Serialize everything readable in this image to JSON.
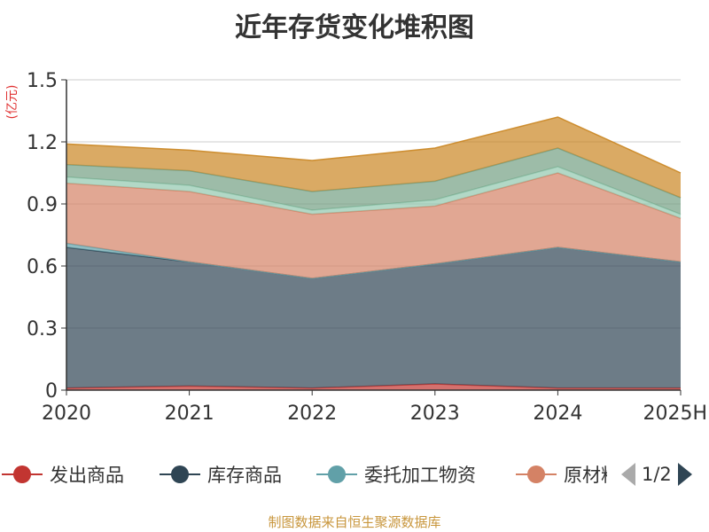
{
  "title": "近年存货变化堆积图",
  "source": "制图数据来自恒生聚源数据库",
  "chart_data": {
    "type": "area",
    "stacked": true,
    "x": [
      "2020",
      "2021",
      "2022",
      "2023",
      "2024",
      "2025H"
    ],
    "ylabel": "(亿元)",
    "ylim": [
      0,
      1.5
    ],
    "yticks": [
      "0",
      "0.3",
      "0.6",
      "0.9",
      "1.2",
      "1.5"
    ],
    "grid": true,
    "series": [
      {
        "name": "发出商品",
        "color": "#c23531",
        "values": [
          0.01,
          0.02,
          0.01,
          0.03,
          0.01,
          0.01
        ]
      },
      {
        "name": "库存商品",
        "color": "#2f4554",
        "values": [
          0.68,
          0.6,
          0.53,
          0.58,
          0.68,
          0.61
        ]
      },
      {
        "name": "委托加工物资",
        "color": "#61a0a8",
        "values": [
          0.02,
          0.0,
          0.0,
          0.0,
          0.0,
          0.0
        ]
      },
      {
        "name": "原材料",
        "color": "#d48265",
        "values": [
          0.29,
          0.34,
          0.31,
          0.28,
          0.36,
          0.21
        ]
      },
      {
        "name": "",
        "color": "#91c7ae",
        "values": [
          0.03,
          0.03,
          0.02,
          0.03,
          0.03,
          0.02
        ]
      },
      {
        "name": "",
        "color": "#749f83",
        "values": [
          0.06,
          0.07,
          0.09,
          0.09,
          0.09,
          0.08
        ]
      },
      {
        "name": "",
        "color": "#ca8622",
        "values": [
          0.1,
          0.1,
          0.15,
          0.16,
          0.15,
          0.12
        ]
      }
    ]
  },
  "legend": {
    "visible_items": [
      {
        "label": "发出商品",
        "color": "#c23531"
      },
      {
        "label": "库存商品",
        "color": "#2f4554"
      },
      {
        "label": "委托加工物资",
        "color": "#61a0a8"
      },
      {
        "label": "原材料",
        "color": "#d48265"
      }
    ],
    "page_indicator": "1/2",
    "prev_color": "#aaaaaa",
    "next_color": "#2f4554"
  }
}
